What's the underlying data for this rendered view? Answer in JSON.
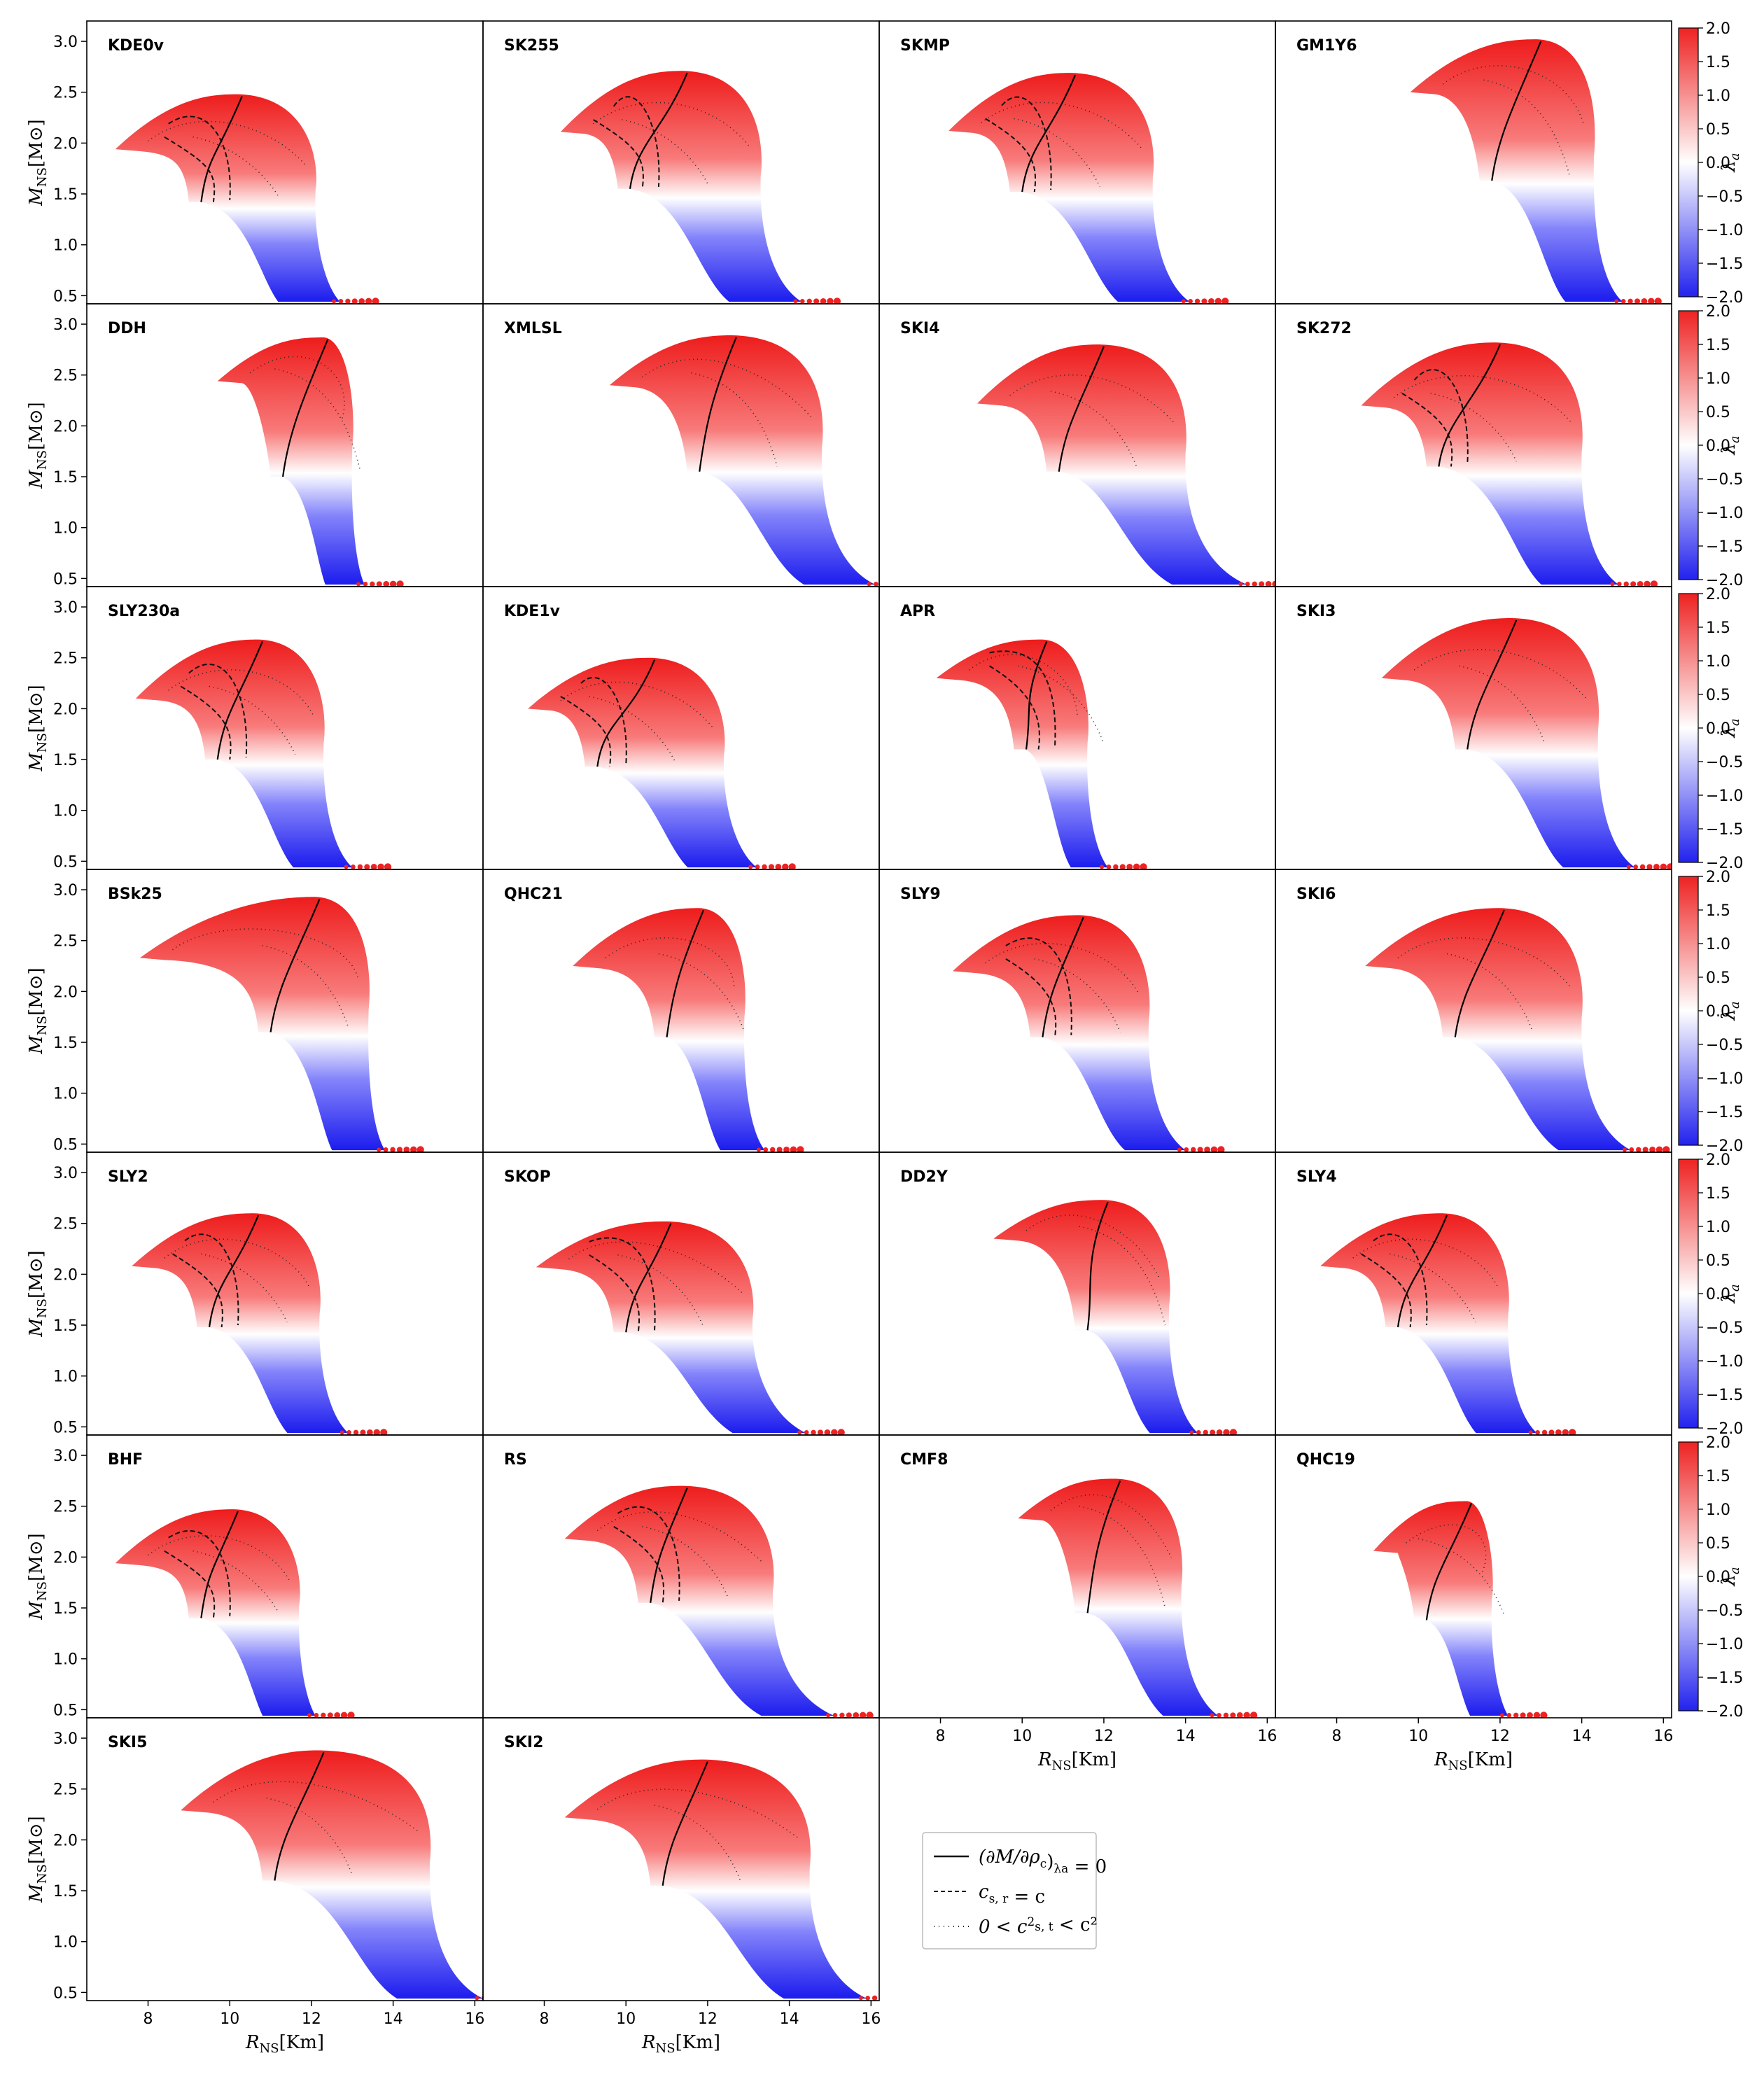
{
  "chart_data": {
    "type": "scatter",
    "description_axes": {
      "x_label_main": "R",
      "x_label_sub": "NS",
      "x_label_unit": "[Km]",
      "y_label_main": "M",
      "y_label_sub": "NS",
      "y_label_unit": "[M",
      "y_label_unit_sym": "⊙",
      "y_label_unit_end": "]",
      "xlim": [
        6.5,
        16.2
      ],
      "ylim": [
        0.42,
        3.2
      ],
      "xticks": [
        "8",
        "10",
        "12",
        "14",
        "16"
      ],
      "xtick_values": [
        8,
        10,
        12,
        14,
        16
      ],
      "yticks": [
        "0.5",
        "1.0",
        "1.5",
        "2.0",
        "2.5",
        "3.0"
      ],
      "ytick_values": [
        0.5,
        1.0,
        1.5,
        2.0,
        2.5,
        3.0
      ]
    },
    "colorbar": {
      "label": "λ",
      "label_sub": "a",
      "range": [
        -2.0,
        2.0
      ],
      "ticks": [
        "2.0",
        "1.5",
        "1.0",
        "0.5",
        "0.0",
        "−0.5",
        "−1.0",
        "−1.5",
        "−2.0"
      ],
      "tick_values": [
        2.0,
        1.5,
        1.0,
        0.5,
        0.0,
        -0.5,
        -1.0,
        -1.5,
        -2.0
      ],
      "colors": {
        "high": "#ee2222",
        "mid": "#ffffff",
        "low": "#2222ee"
      }
    },
    "legend": [
      {
        "style": "solid",
        "label": "(∂M/∂ρc)λa = 0",
        "lhs": "(∂M/∂ρ",
        "lhs_sub": "c",
        "lhs_end": ")",
        "lhs_sub2": "λa",
        "rhs": " = 0"
      },
      {
        "style": "dashed",
        "label": "cs,r = c",
        "lhs": "c",
        "lhs_sub": "s, r",
        "rhs": " = c"
      },
      {
        "style": "dotted",
        "label": "0 < c²s,t < c²",
        "lhs": "0 < c",
        "lhs_sup": "2",
        "lhs_sub": "s, t",
        "rhs": " < c²"
      }
    ],
    "panels": [
      {
        "name": "KDE0v",
        "mmax": 2.48,
        "rmax": 10.2,
        "rmin": 7.2,
        "mleft": 1.94,
        "rturn": 12.1,
        "rbot": 12.7,
        "mfold": 1.42,
        "rfold": 9.0,
        "dashed": true
      },
      {
        "name": "SK255",
        "mmax": 2.71,
        "rmax": 11.4,
        "rmin": 8.4,
        "mleft": 2.11,
        "rturn": 13.3,
        "rbot": 14.3,
        "mfold": 1.55,
        "rfold": 9.8,
        "dashed": true
      },
      {
        "name": "SKMP",
        "mmax": 2.69,
        "rmax": 11.2,
        "rmin": 8.2,
        "mleft": 2.12,
        "rturn": 13.2,
        "rbot": 14.1,
        "mfold": 1.52,
        "rfold": 9.7,
        "dashed": true
      },
      {
        "name": "GM1Y6",
        "mmax": 3.02,
        "rmax": 12.9,
        "rmin": 9.8,
        "mleft": 2.5,
        "rturn": 14.3,
        "rbot": 15.0,
        "mfold": 1.63,
        "rfold": 11.5,
        "dashed": false
      },
      {
        "name": "DDH",
        "mmax": 2.87,
        "rmax": 12.3,
        "rmin": 9.7,
        "mleft": 2.44,
        "rturn": 13.0,
        "rbot": 13.3,
        "mfold": 1.5,
        "rfold": 11.0,
        "dashed": false
      },
      {
        "name": "XMLSL",
        "mmax": 2.89,
        "rmax": 12.6,
        "rmin": 9.6,
        "mleft": 2.4,
        "rturn": 14.8,
        "rbot": 16.1,
        "mfold": 1.55,
        "rfold": 11.5,
        "dashed": false
      },
      {
        "name": "SKI4",
        "mmax": 2.8,
        "rmax": 11.9,
        "rmin": 8.9,
        "mleft": 2.22,
        "rturn": 14.0,
        "rbot": 15.5,
        "mfold": 1.55,
        "rfold": 10.6,
        "dashed": false
      },
      {
        "name": "SK272",
        "mmax": 2.82,
        "rmax": 11.9,
        "rmin": 8.6,
        "mleft": 2.2,
        "rturn": 14.0,
        "rbot": 14.9,
        "mfold": 1.6,
        "rfold": 10.2,
        "dashed": true
      },
      {
        "name": "SLY230a",
        "mmax": 2.68,
        "rmax": 10.7,
        "rmin": 7.7,
        "mleft": 2.1,
        "rturn": 12.3,
        "rbot": 13.0,
        "mfold": 1.5,
        "rfold": 9.4,
        "dashed": true
      },
      {
        "name": "KDE1v",
        "mmax": 2.5,
        "rmax": 10.6,
        "rmin": 7.6,
        "mleft": 2.0,
        "rturn": 12.4,
        "rbot": 13.2,
        "mfold": 1.43,
        "rfold": 9.0,
        "dashed": true
      },
      {
        "name": "APR",
        "mmax": 2.68,
        "rmax": 10.5,
        "rmin": 7.9,
        "mleft": 2.3,
        "rturn": 11.6,
        "rbot": 12.1,
        "mfold": 1.6,
        "rfold": 9.8,
        "dashed": true
      },
      {
        "name": "SKI3",
        "mmax": 2.89,
        "rmax": 12.3,
        "rmin": 9.1,
        "mleft": 2.3,
        "rturn": 14.4,
        "rbot": 15.3,
        "mfold": 1.6,
        "rfold": 10.9,
        "dashed": false
      },
      {
        "name": "BSk25",
        "mmax": 2.93,
        "rmax": 12.1,
        "rmin": 7.8,
        "mleft": 2.33,
        "rturn": 13.4,
        "rbot": 13.8,
        "mfold": 1.6,
        "rfold": 10.7,
        "dashed": false
      },
      {
        "name": "QHC21",
        "mmax": 2.82,
        "rmax": 11.8,
        "rmin": 8.7,
        "mleft": 2.25,
        "rturn": 12.9,
        "rbot": 13.4,
        "mfold": 1.55,
        "rfold": 10.7,
        "dashed": false
      },
      {
        "name": "SLY9",
        "mmax": 2.75,
        "rmax": 11.4,
        "rmin": 8.3,
        "mleft": 2.2,
        "rturn": 13.1,
        "rbot": 14.0,
        "mfold": 1.55,
        "rfold": 10.2,
        "dashed": true
      },
      {
        "name": "SKI6",
        "mmax": 2.82,
        "rmax": 12.0,
        "rmin": 8.7,
        "mleft": 2.25,
        "rturn": 14.0,
        "rbot": 15.2,
        "mfold": 1.55,
        "rfold": 10.6,
        "dashed": false
      },
      {
        "name": "SLY2",
        "mmax": 2.6,
        "rmax": 10.6,
        "rmin": 7.6,
        "mleft": 2.08,
        "rturn": 12.2,
        "rbot": 12.9,
        "mfold": 1.48,
        "rfold": 9.2,
        "dashed": true
      },
      {
        "name": "SKOP",
        "mmax": 2.52,
        "rmax": 11.0,
        "rmin": 7.8,
        "mleft": 2.07,
        "rturn": 13.1,
        "rbot": 14.4,
        "mfold": 1.43,
        "rfold": 9.7,
        "dashed": true
      },
      {
        "name": "DD2Y",
        "mmax": 2.73,
        "rmax": 12.0,
        "rmin": 9.3,
        "mleft": 2.35,
        "rturn": 13.6,
        "rbot": 14.3,
        "mfold": 1.45,
        "rfold": 11.3,
        "dashed": false
      },
      {
        "name": "SLY4",
        "mmax": 2.6,
        "rmax": 10.6,
        "rmin": 7.6,
        "mleft": 2.08,
        "rturn": 12.2,
        "rbot": 12.9,
        "mfold": 1.48,
        "rfold": 9.2,
        "dashed": true
      },
      {
        "name": "BHF",
        "mmax": 2.47,
        "rmax": 10.1,
        "rmin": 7.2,
        "mleft": 1.94,
        "rturn": 11.7,
        "rbot": 12.1,
        "mfold": 1.4,
        "rfold": 9.0,
        "dashed": true
      },
      {
        "name": "RS",
        "mmax": 2.7,
        "rmax": 11.4,
        "rmin": 8.5,
        "mleft": 2.18,
        "rturn": 13.6,
        "rbot": 15.1,
        "mfold": 1.55,
        "rfold": 10.3,
        "dashed": true
      },
      {
        "name": "CMF8",
        "mmax": 2.77,
        "rmax": 12.3,
        "rmin": 9.9,
        "mleft": 2.38,
        "rturn": 13.9,
        "rbot": 14.8,
        "mfold": 1.45,
        "rfold": 11.3,
        "dashed": false
      },
      {
        "name": "QHC19",
        "mmax": 2.55,
        "rmax": 11.2,
        "rmin": 8.9,
        "mleft": 2.06,
        "rturn": 11.8,
        "rbot": 12.2,
        "mfold": 1.38,
        "rfold": 9.9,
        "dashed": false
      },
      {
        "name": "SKI5",
        "mmax": 2.88,
        "rmax": 12.2,
        "rmin": 8.8,
        "mleft": 2.29,
        "rturn": 14.9,
        "rbot": 16.2,
        "mfold": 1.6,
        "rfold": 10.8,
        "dashed": false
      },
      {
        "name": "SKI2",
        "mmax": 2.79,
        "rmax": 11.9,
        "rmin": 8.5,
        "mleft": 2.22,
        "rturn": 14.5,
        "rbot": 15.9,
        "mfold": 1.55,
        "rfold": 10.6,
        "dashed": false
      }
    ]
  }
}
